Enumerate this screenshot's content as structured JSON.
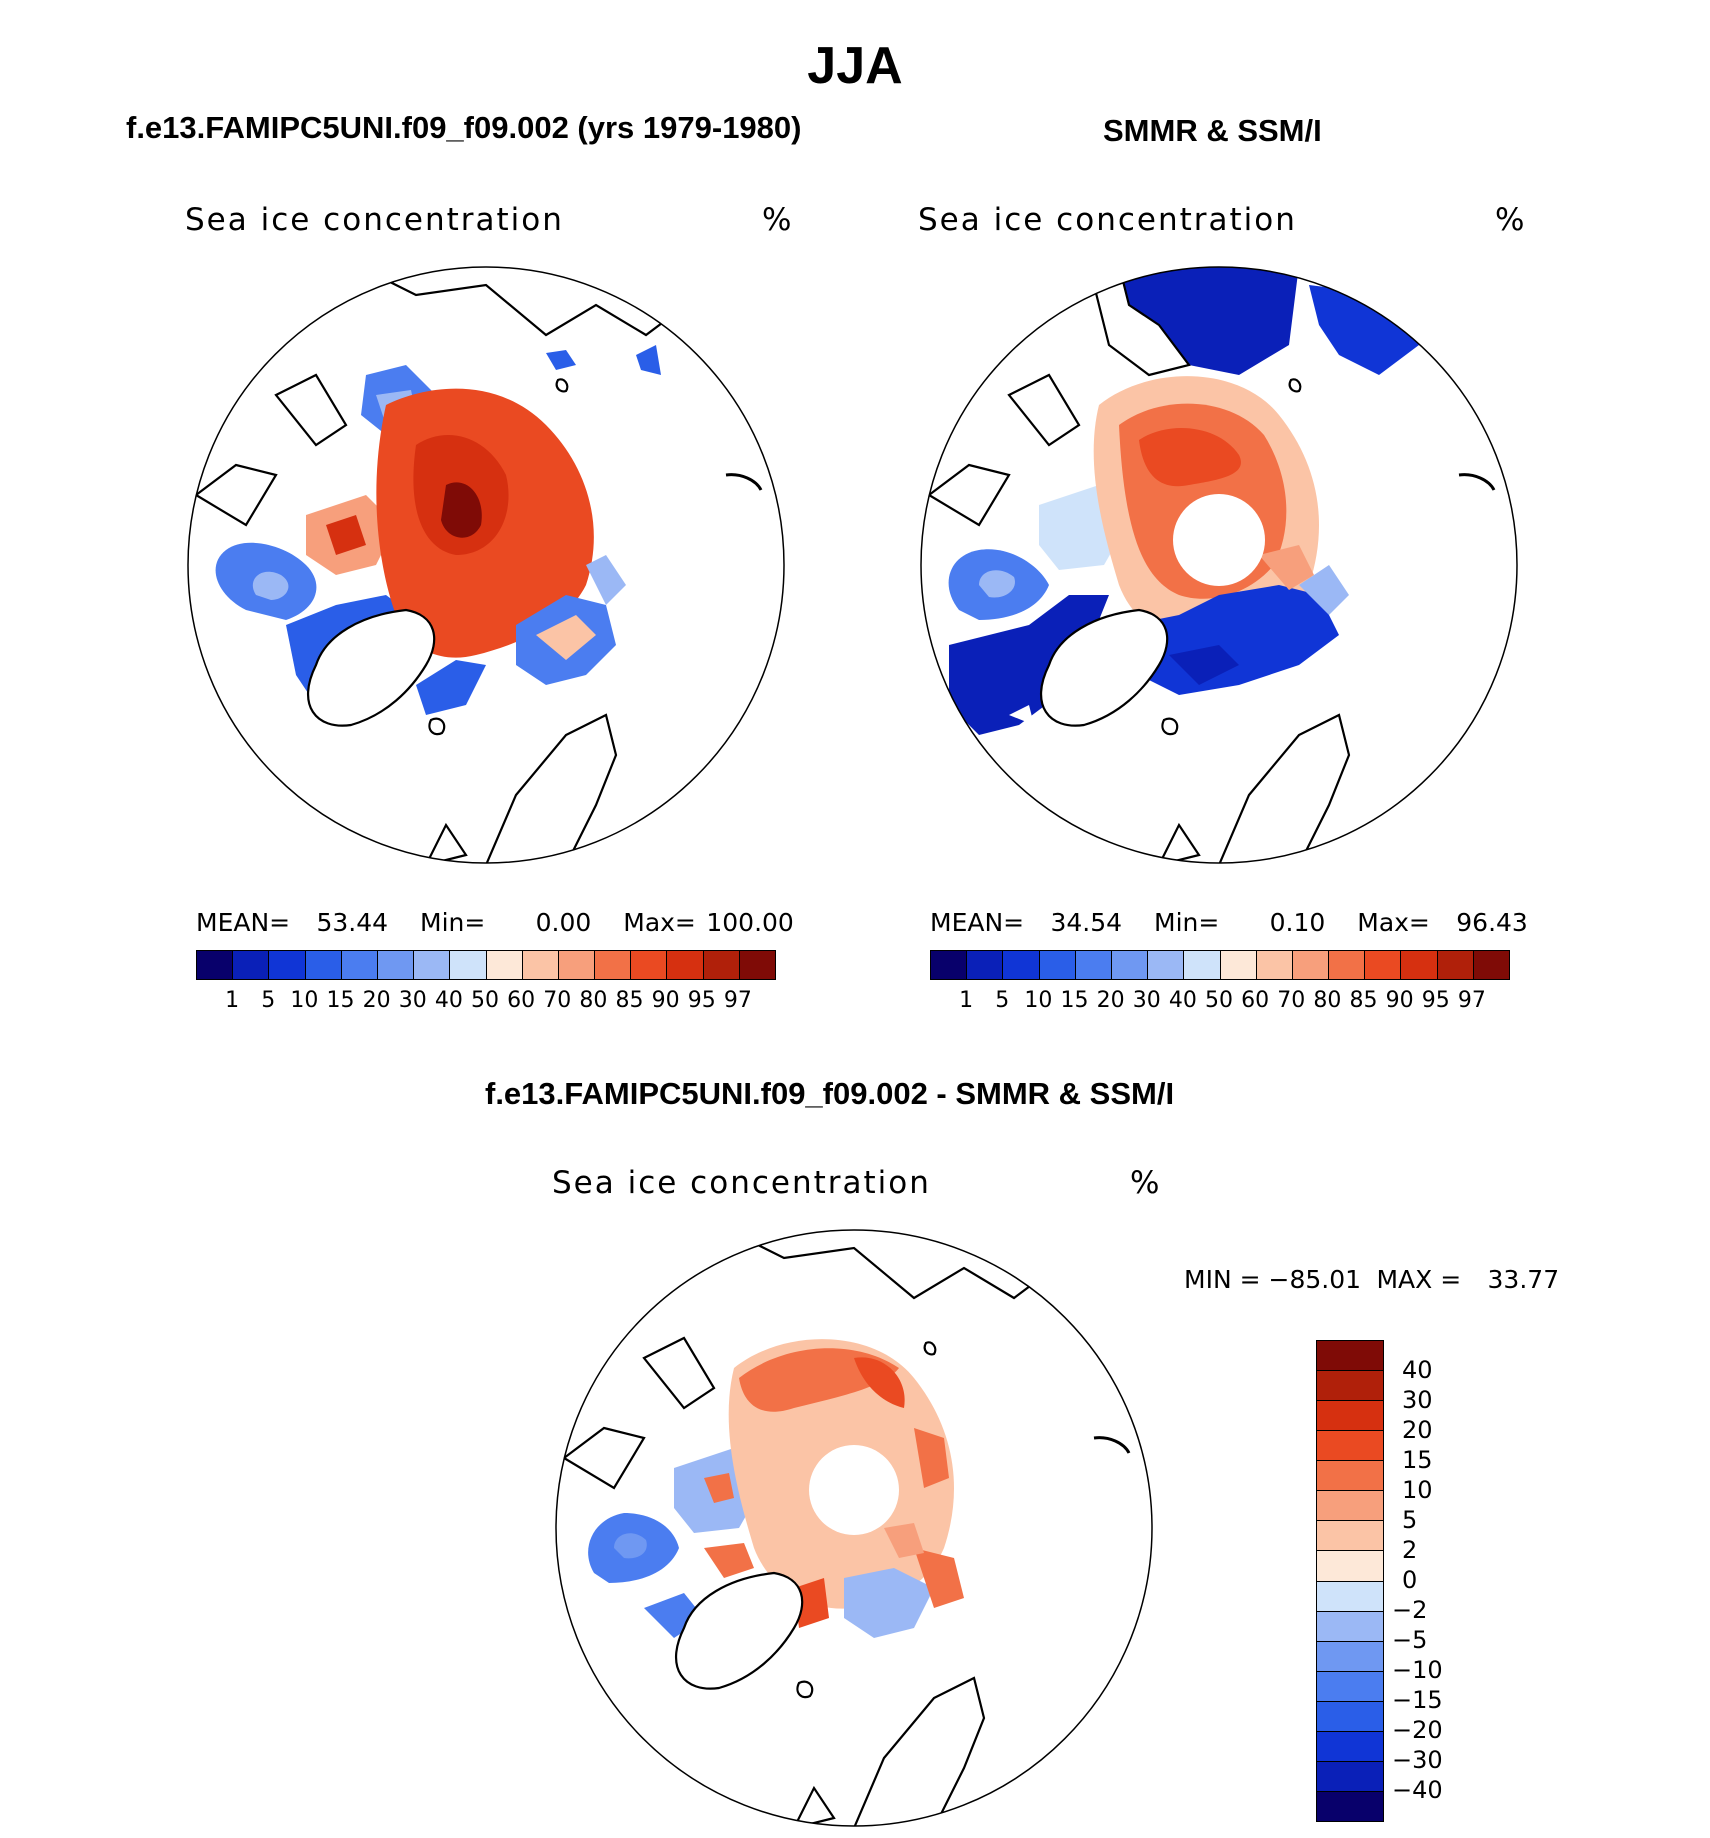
{
  "title": "JJA",
  "colorbar_main": {
    "colors": [
      "#08006b",
      "#0a20b8",
      "#1035d6",
      "#2a5ee8",
      "#4b7df0",
      "#6f98f2",
      "#9bb8f5",
      "#cfe3fa",
      "#fde8d8",
      "#fbc4a6",
      "#f79f7c",
      "#f27147",
      "#ea4a22",
      "#d63010",
      "#b0200a",
      "#7f0b06"
    ],
    "ticks": [
      "1",
      "5",
      "10",
      "15",
      "20",
      "30",
      "40",
      "50",
      "60",
      "70",
      "80",
      "85",
      "90",
      "95",
      "97"
    ]
  },
  "colorbar_diff": {
    "colors": [
      "#7f0b06",
      "#b0200a",
      "#d63010",
      "#ea4a22",
      "#f27147",
      "#f79f7c",
      "#fbc4a6",
      "#fde8d8",
      "#cfe3fa",
      "#9bb8f5",
      "#6f98f2",
      "#4b7df0",
      "#2a5ee8",
      "#1035d6",
      "#0a20b8",
      "#08006b"
    ],
    "ticks": [
      "40",
      "30",
      "20",
      "15",
      "10",
      "5",
      "2",
      "0",
      "−2",
      "−5",
      "−10",
      "−15",
      "−20",
      "−30",
      "−40"
    ]
  },
  "panels": {
    "model": {
      "title": "f.e13.FAMIPC5UNI.f09_f09.002 (yrs 1979-1980)",
      "variable": "Sea ice concentration",
      "units": "%",
      "stats": {
        "mean_label": "MEAN=",
        "mean": "53.44",
        "min_label": "Min=",
        "min": "0.00",
        "max_label": "Max=",
        "max": "100.00"
      }
    },
    "obs": {
      "title": "SMMR & SSM/I",
      "variable": "Sea ice concentration",
      "units": "%",
      "stats": {
        "mean_label": "MEAN=",
        "mean": "34.54",
        "min_label": "Min=",
        "min": "0.10",
        "max_label": "Max=",
        "max": "96.43"
      }
    },
    "diff": {
      "title": "f.e13.FAMIPC5UNI.f09_f09.002 - SMMR & SSM/I",
      "variable": "Sea ice concentration",
      "units": "%",
      "stats": {
        "min_label": "MIN =",
        "min": "−85.01",
        "max_label": "MAX =",
        "max": "33.77"
      }
    }
  }
}
